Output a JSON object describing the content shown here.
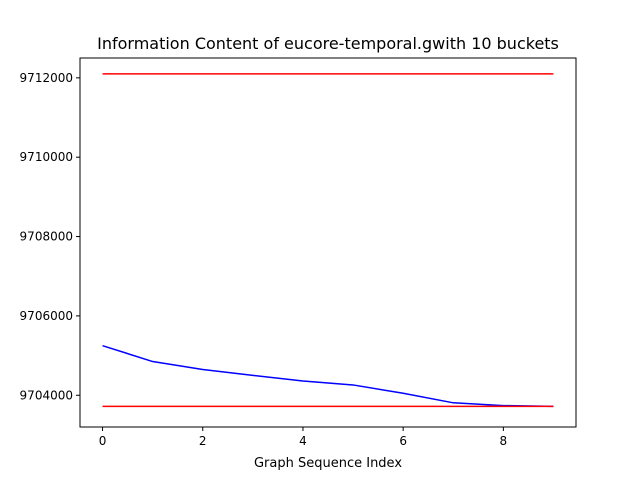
{
  "chart_data": {
    "type": "line",
    "title": "Information Content of eucore-temporal.gwith 10 buckets",
    "xlabel": "Graph Sequence Index",
    "ylabel": "",
    "xlim": [
      -0.45,
      9.45
    ],
    "ylim": [
      9703200,
      9712500
    ],
    "x_ticks": [
      0,
      2,
      4,
      6,
      8
    ],
    "y_ticks": [
      9704000,
      9706000,
      9708000,
      9710000,
      9712000
    ],
    "grid": false,
    "legend": "none",
    "x": [
      0,
      1,
      2,
      3,
      4,
      5,
      6,
      7,
      8,
      9
    ],
    "series": [
      {
        "color": "#0000ff",
        "values": [
          9705250,
          9704850,
          9704650,
          9704500,
          9704360,
          9704260,
          9704050,
          9703810,
          9703740,
          9703720
        ]
      },
      {
        "color": "#ff0000",
        "values": [
          9712100,
          9712100,
          9712100,
          9712100,
          9712100,
          9712100,
          9712100,
          9712100,
          9712100,
          9712100
        ]
      },
      {
        "color": "#ff0000",
        "values": [
          9703720,
          9703720,
          9703720,
          9703720,
          9703720,
          9703720,
          9703720,
          9703720,
          9703720,
          9703720
        ]
      }
    ]
  }
}
